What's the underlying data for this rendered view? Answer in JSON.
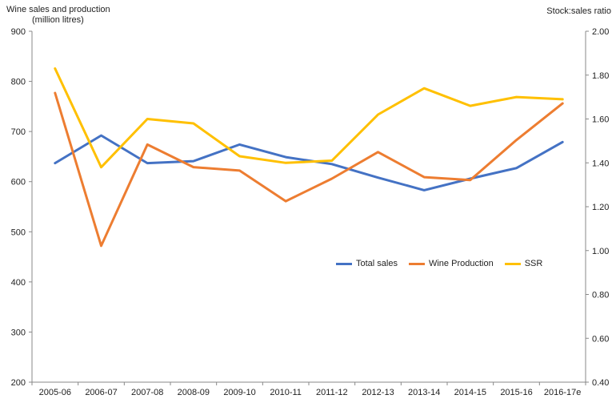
{
  "chart_data": {
    "type": "line",
    "categories": [
      "2005-06",
      "2006-07",
      "2007-08",
      "2008-09",
      "2009-10",
      "2010-11",
      "2011-12",
      "2012-13",
      "2013-14",
      "2014-15",
      "2015-16",
      "2016-17e"
    ],
    "y_left": {
      "title_line1": "Wine sales and production",
      "title_line2": "(million litres)",
      "ylim": [
        200,
        900
      ],
      "ticks": [
        "200",
        "300",
        "400",
        "500",
        "600",
        "700",
        "800",
        "900"
      ]
    },
    "y_right": {
      "title": "Stock:sales ratio",
      "ylim": [
        0.4,
        2.0
      ],
      "ticks": [
        "0.40",
        "0.60",
        "0.80",
        "1.00",
        "1.20",
        "1.40",
        "1.60",
        "1.80",
        "2.00"
      ]
    },
    "series": [
      {
        "name": "Total sales",
        "axis": "left",
        "color": "#4472C4",
        "values": [
          637,
          692,
          637,
          641,
          674,
          649,
          635,
          608,
          583,
          606,
          627,
          679
        ]
      },
      {
        "name": "Wine Production",
        "axis": "left",
        "color": "#ED7D31",
        "values": [
          777,
          472,
          674,
          629,
          622,
          561,
          606,
          659,
          609,
          603,
          683,
          756
        ]
      },
      {
        "name": "SSR",
        "axis": "right",
        "color": "#FFC000",
        "values": [
          1.83,
          1.38,
          1.6,
          1.58,
          1.43,
          1.4,
          1.41,
          1.62,
          1.74,
          1.66,
          1.7,
          1.69
        ]
      }
    ],
    "grid": false,
    "legend_position": "center-right"
  }
}
